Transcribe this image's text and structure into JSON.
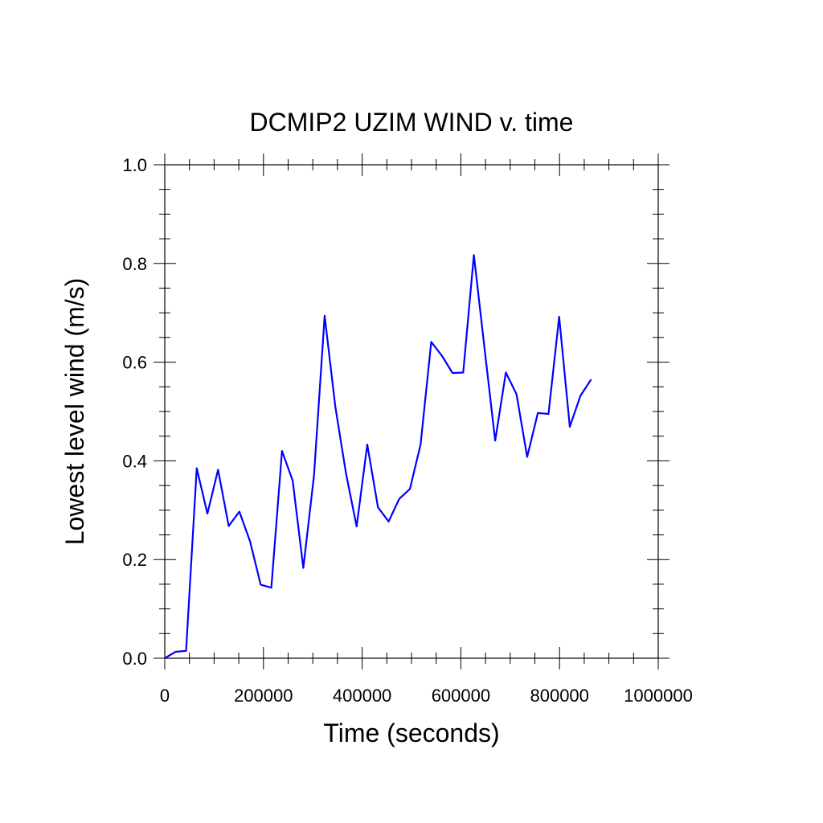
{
  "chart_data": {
    "type": "line",
    "title": "DCMIP2 UZIM WIND v. time",
    "xlabel": "Time (seconds)",
    "ylabel": "Lowest level wind (m/s)",
    "xlim": [
      0,
      1000000
    ],
    "ylim": [
      0.0,
      1.0
    ],
    "x_major_ticks": [
      0,
      200000,
      400000,
      600000,
      800000,
      1000000
    ],
    "x_tick_labels": [
      "0",
      "200000",
      "400000",
      "600000",
      "800000",
      "1000000"
    ],
    "x_minor_step": 50000,
    "y_major_ticks": [
      0.0,
      0.2,
      0.4,
      0.6,
      0.8,
      1.0
    ],
    "y_tick_labels": [
      "0.0",
      "0.2",
      "0.4",
      "0.6",
      "0.8",
      "1.0"
    ],
    "y_minor_step": 0.05,
    "grid": false,
    "line_color": "#0000ff",
    "series": [
      {
        "x": [
          0,
          21600,
          43200,
          64800,
          86400,
          108000,
          129600,
          151200,
          172800,
          194400,
          216000,
          237600,
          259200,
          280800,
          302400,
          324000,
          345600,
          367200,
          388800,
          410400,
          432000,
          453600,
          475200,
          496800,
          518400,
          540000,
          561600,
          583200,
          604800,
          626400,
          648000,
          669600,
          691200,
          712800,
          734400,
          756000,
          777600,
          799200,
          820800,
          842400,
          864000
        ],
        "y": [
          0.0,
          0.013,
          0.015,
          0.385,
          0.293,
          0.382,
          0.268,
          0.297,
          0.237,
          0.149,
          0.143,
          0.42,
          0.36,
          0.183,
          0.37,
          0.694,
          0.51,
          0.375,
          0.267,
          0.433,
          0.306,
          0.277,
          0.323,
          0.343,
          0.433,
          0.641,
          0.613,
          0.578,
          0.579,
          0.817,
          0.628,
          0.441,
          0.579,
          0.535,
          0.408,
          0.497,
          0.495,
          0.692,
          0.469,
          0.532,
          0.565
        ]
      }
    ]
  }
}
